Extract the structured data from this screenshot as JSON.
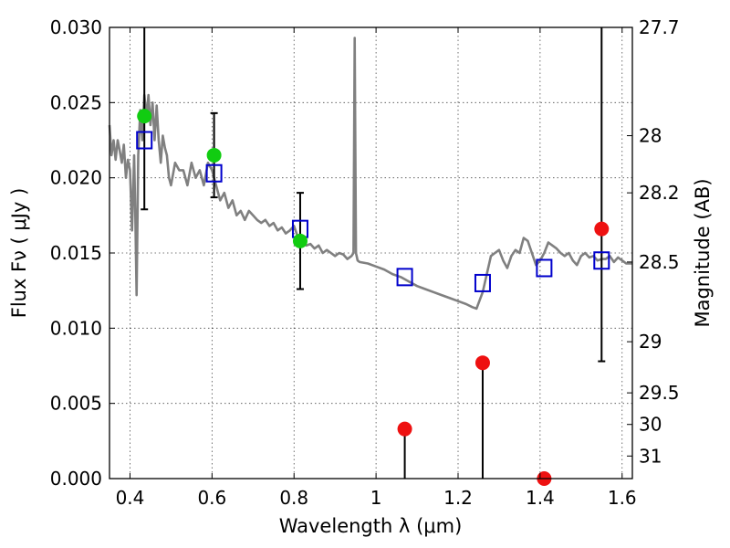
{
  "chart_data": {
    "type": "scatter",
    "xlabel": "Wavelength  λ (μm)",
    "ylabel": "Flux  Fν  ( μJy )",
    "ylabel_right": "Magnitude (AB)",
    "xlim": [
      0.35,
      1.625
    ],
    "ylim": [
      0.0,
      0.03
    ],
    "grid": true,
    "x_ticks": [
      0.4,
      0.6,
      0.8,
      1.0,
      1.2,
      1.4,
      1.6
    ],
    "x_tick_labels": [
      "0.4",
      "0.6",
      "0.8",
      "1",
      "1.2",
      "1.4",
      "1.6"
    ],
    "y_ticks": [
      0.0,
      0.005,
      0.01,
      0.015,
      0.02,
      0.025,
      0.03
    ],
    "y_tick_labels": [
      "0.000",
      "0.005",
      "0.010",
      "0.015",
      "0.020",
      "0.025",
      "0.030"
    ],
    "right_ticks": [
      {
        "label": "27.7",
        "flux": 0.03
      },
      {
        "label": "28",
        "flux": 0.0228
      },
      {
        "label": "28.2",
        "flux": 0.019
      },
      {
        "label": "28.5",
        "flux": 0.0144
      },
      {
        "label": "29",
        "flux": 0.0091
      },
      {
        "label": "29.5",
        "flux": 0.0057
      },
      {
        "label": "30",
        "flux": 0.0036
      },
      {
        "label": "31",
        "flux": 0.0015
      }
    ],
    "colors": {
      "template": "#808080",
      "model_box": "#0000cc",
      "detection": "#11cc11",
      "non_detection": "#ee1111",
      "errorbar": "#000000"
    },
    "series": [
      {
        "kind": "template_spectrum",
        "x": [
          0.35,
          0.355,
          0.36,
          0.365,
          0.37,
          0.375,
          0.38,
          0.385,
          0.39,
          0.395,
          0.4,
          0.405,
          0.41,
          0.413,
          0.416,
          0.42,
          0.425,
          0.43,
          0.435,
          0.44,
          0.445,
          0.45,
          0.455,
          0.46,
          0.465,
          0.47,
          0.475,
          0.48,
          0.485,
          0.49,
          0.495,
          0.5,
          0.51,
          0.52,
          0.53,
          0.54,
          0.55,
          0.56,
          0.57,
          0.58,
          0.59,
          0.6,
          0.61,
          0.62,
          0.63,
          0.64,
          0.65,
          0.66,
          0.67,
          0.68,
          0.69,
          0.7,
          0.71,
          0.72,
          0.73,
          0.74,
          0.75,
          0.76,
          0.77,
          0.78,
          0.79,
          0.8,
          0.81,
          0.82,
          0.83,
          0.84,
          0.85,
          0.86,
          0.87,
          0.88,
          0.89,
          0.9,
          0.91,
          0.92,
          0.93,
          0.94,
          0.945,
          0.948,
          0.951,
          0.955,
          0.96,
          0.98,
          1.0,
          1.02,
          1.04,
          1.06,
          1.08,
          1.1,
          1.12,
          1.14,
          1.16,
          1.18,
          1.2,
          1.22,
          1.235,
          1.245,
          1.26,
          1.27,
          1.28,
          1.29,
          1.3,
          1.31,
          1.32,
          1.33,
          1.34,
          1.35,
          1.36,
          1.37,
          1.38,
          1.39,
          1.4,
          1.41,
          1.42,
          1.43,
          1.44,
          1.45,
          1.46,
          1.47,
          1.48,
          1.49,
          1.5,
          1.51,
          1.52,
          1.53,
          1.54,
          1.55,
          1.56,
          1.57,
          1.58,
          1.59,
          1.6,
          1.61,
          1.625
        ],
        "y": [
          0.0235,
          0.0215,
          0.0225,
          0.0212,
          0.0225,
          0.0218,
          0.021,
          0.0222,
          0.02,
          0.0212,
          0.0205,
          0.0165,
          0.0215,
          0.0175,
          0.0122,
          0.0215,
          0.0245,
          0.0225,
          0.0255,
          0.024,
          0.0255,
          0.0235,
          0.025,
          0.0225,
          0.0248,
          0.0225,
          0.021,
          0.0228,
          0.022,
          0.0215,
          0.02,
          0.0195,
          0.021,
          0.0205,
          0.0205,
          0.0195,
          0.021,
          0.02,
          0.0205,
          0.0195,
          0.021,
          0.0205,
          0.0195,
          0.0185,
          0.019,
          0.018,
          0.0185,
          0.0175,
          0.0178,
          0.0172,
          0.0178,
          0.0175,
          0.0172,
          0.017,
          0.0172,
          0.0168,
          0.017,
          0.0165,
          0.0167,
          0.0163,
          0.0165,
          0.0168,
          0.016,
          0.0157,
          0.0155,
          0.0156,
          0.0153,
          0.0155,
          0.015,
          0.0152,
          0.015,
          0.0148,
          0.015,
          0.0149,
          0.0146,
          0.0148,
          0.015,
          0.0293,
          0.015,
          0.0145,
          0.0144,
          0.0143,
          0.0141,
          0.0139,
          0.0136,
          0.0134,
          0.0131,
          0.0128,
          0.0126,
          0.0124,
          0.0122,
          0.012,
          0.0118,
          0.0116,
          0.0114,
          0.0113,
          0.0124,
          0.0136,
          0.0148,
          0.015,
          0.0152,
          0.0145,
          0.014,
          0.0148,
          0.0152,
          0.015,
          0.016,
          0.0158,
          0.015,
          0.0142,
          0.0145,
          0.015,
          0.0157,
          0.0155,
          0.0153,
          0.015,
          0.0148,
          0.015,
          0.0145,
          0.0142,
          0.0148,
          0.015,
          0.0147,
          0.0148,
          0.0145,
          0.0146,
          0.0146,
          0.0148,
          0.0144,
          0.0147,
          0.0145,
          0.0143,
          0.0143
        ]
      },
      {
        "kind": "model_photometry",
        "marker": "square",
        "x": [
          0.435,
          0.605,
          0.815,
          1.07,
          1.26,
          1.41,
          1.55
        ],
        "y": [
          0.0225,
          0.0203,
          0.0166,
          0.0134,
          0.013,
          0.014,
          0.0145
        ]
      },
      {
        "kind": "detections",
        "marker": "circle",
        "x": [
          0.435,
          0.605,
          0.815
        ],
        "y": [
          0.0241,
          0.0215,
          0.0158
        ],
        "err": [
          0.0062,
          0.0028,
          0.0032
        ]
      },
      {
        "kind": "non_detections",
        "marker": "circle",
        "x": [
          1.07,
          1.26,
          1.41,
          1.55
        ],
        "y": [
          0.0033,
          0.0077,
          0.0,
          0.0166
        ],
        "err_low": [
          0.0122,
          0.0225,
          0.0131,
          0.0088
        ],
        "err_high": [
          0.0,
          0.0,
          0.0,
          0.0245
        ]
      }
    ]
  }
}
